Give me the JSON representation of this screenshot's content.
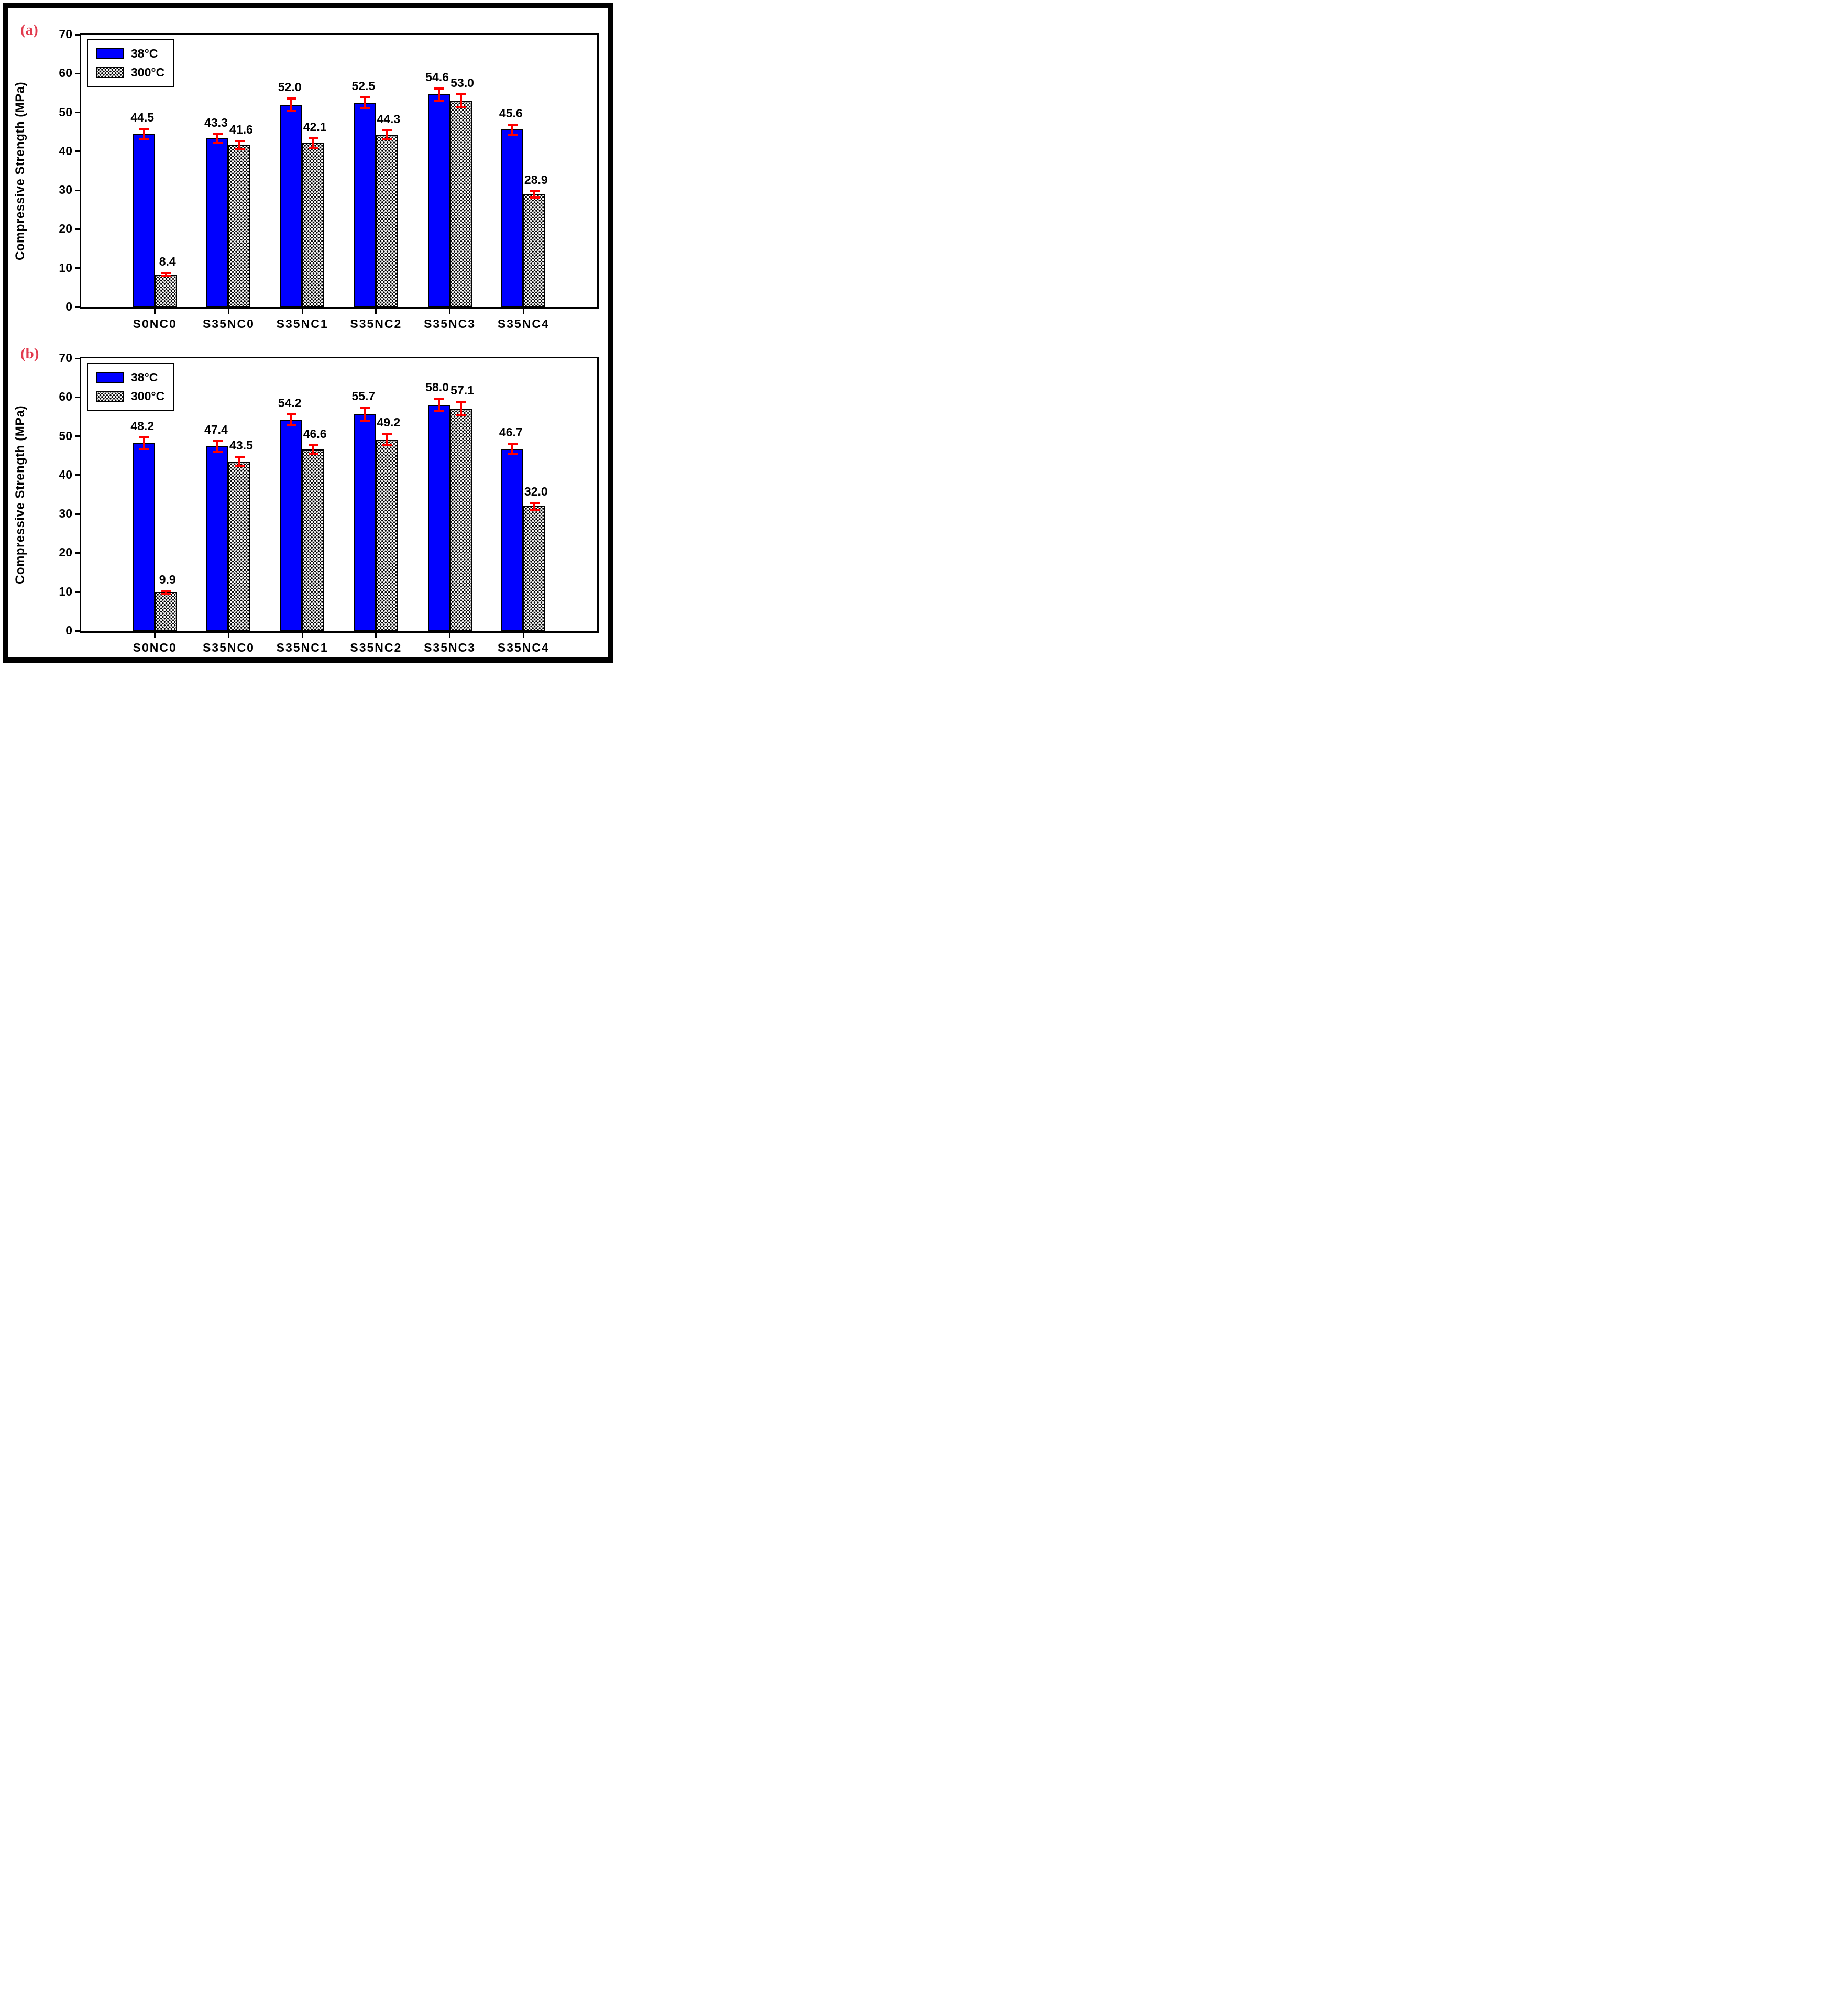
{
  "figure": {
    "background": "#ffffff",
    "outer_border_color": "#000000",
    "panel_label_color": "#e23b4e",
    "bar_fill_blue": "#0000ff",
    "bar_edge_color": "#000000",
    "error_bar_color": "#ff0000"
  },
  "panels": [
    {
      "label": "(a)",
      "y_axis_label": "Compressive Strength (MPa)"
    },
    {
      "label": "(b)",
      "y_axis_label": "Compressive Strength (MPa)"
    }
  ],
  "chart_data": [
    {
      "type": "bar",
      "panel": "(a)",
      "title": "",
      "xlabel": "",
      "ylabel": "Compressive Strength (MPa)",
      "ylim": [
        0,
        70
      ],
      "yticks": [
        0,
        10,
        20,
        30,
        40,
        50,
        60,
        70
      ],
      "grid": false,
      "legend_position": "top-left",
      "error_bars": true,
      "categories": [
        "S0NC0",
        "S35NC0",
        "S35NC1",
        "S35NC2",
        "S35NC3",
        "S35NC4"
      ],
      "series": [
        {
          "name": "38°C",
          "style": "solid",
          "color": "#0000ff",
          "values": [
            44.5,
            43.3,
            52.0,
            52.5,
            54.6,
            45.6
          ],
          "value_labels": [
            "44.5",
            "43.3",
            "52.0",
            "52.5",
            "54.6",
            "45.6"
          ],
          "errors": [
            1.3,
            1.1,
            1.6,
            1.4,
            1.5,
            1.3
          ]
        },
        {
          "name": "300°C",
          "style": "stipple",
          "color": "#ffffff",
          "values": [
            8.4,
            41.6,
            42.1,
            44.3,
            53.0,
            28.9
          ],
          "value_labels": [
            "8.4",
            "41.6",
            "42.1",
            "44.3",
            "53.0",
            "28.9"
          ],
          "errors": [
            0.3,
            1.1,
            1.2,
            1.1,
            1.6,
            0.8
          ]
        }
      ]
    },
    {
      "type": "bar",
      "panel": "(b)",
      "title": "",
      "xlabel": "",
      "ylabel": "Compressive Strength (MPa)",
      "ylim": [
        0,
        70
      ],
      "yticks": [
        0,
        10,
        20,
        30,
        40,
        50,
        60,
        70
      ],
      "grid": false,
      "legend_position": "top-left",
      "error_bars": true,
      "categories": [
        "S0NC0",
        "S35NC0",
        "S35NC1",
        "S35NC2",
        "S35NC3",
        "S35NC4"
      ],
      "series": [
        {
          "name": "38°C",
          "style": "solid",
          "color": "#0000ff",
          "values": [
            48.2,
            47.4,
            54.2,
            55.7,
            58.0,
            46.7
          ],
          "value_labels": [
            "48.2",
            "47.4",
            "54.2",
            "55.7",
            "58.0",
            "46.7"
          ],
          "errors": [
            1.5,
            1.3,
            1.4,
            1.7,
            1.6,
            1.3
          ]
        },
        {
          "name": "300°C",
          "style": "stipple",
          "color": "#ffffff",
          "values": [
            9.9,
            43.5,
            46.6,
            49.2,
            57.1,
            32.0
          ],
          "value_labels": [
            "9.9",
            "43.5",
            "46.6",
            "49.2",
            "57.1",
            "32.0"
          ],
          "errors": [
            0.35,
            1.2,
            1.1,
            1.4,
            1.7,
            0.9
          ]
        }
      ]
    }
  ]
}
